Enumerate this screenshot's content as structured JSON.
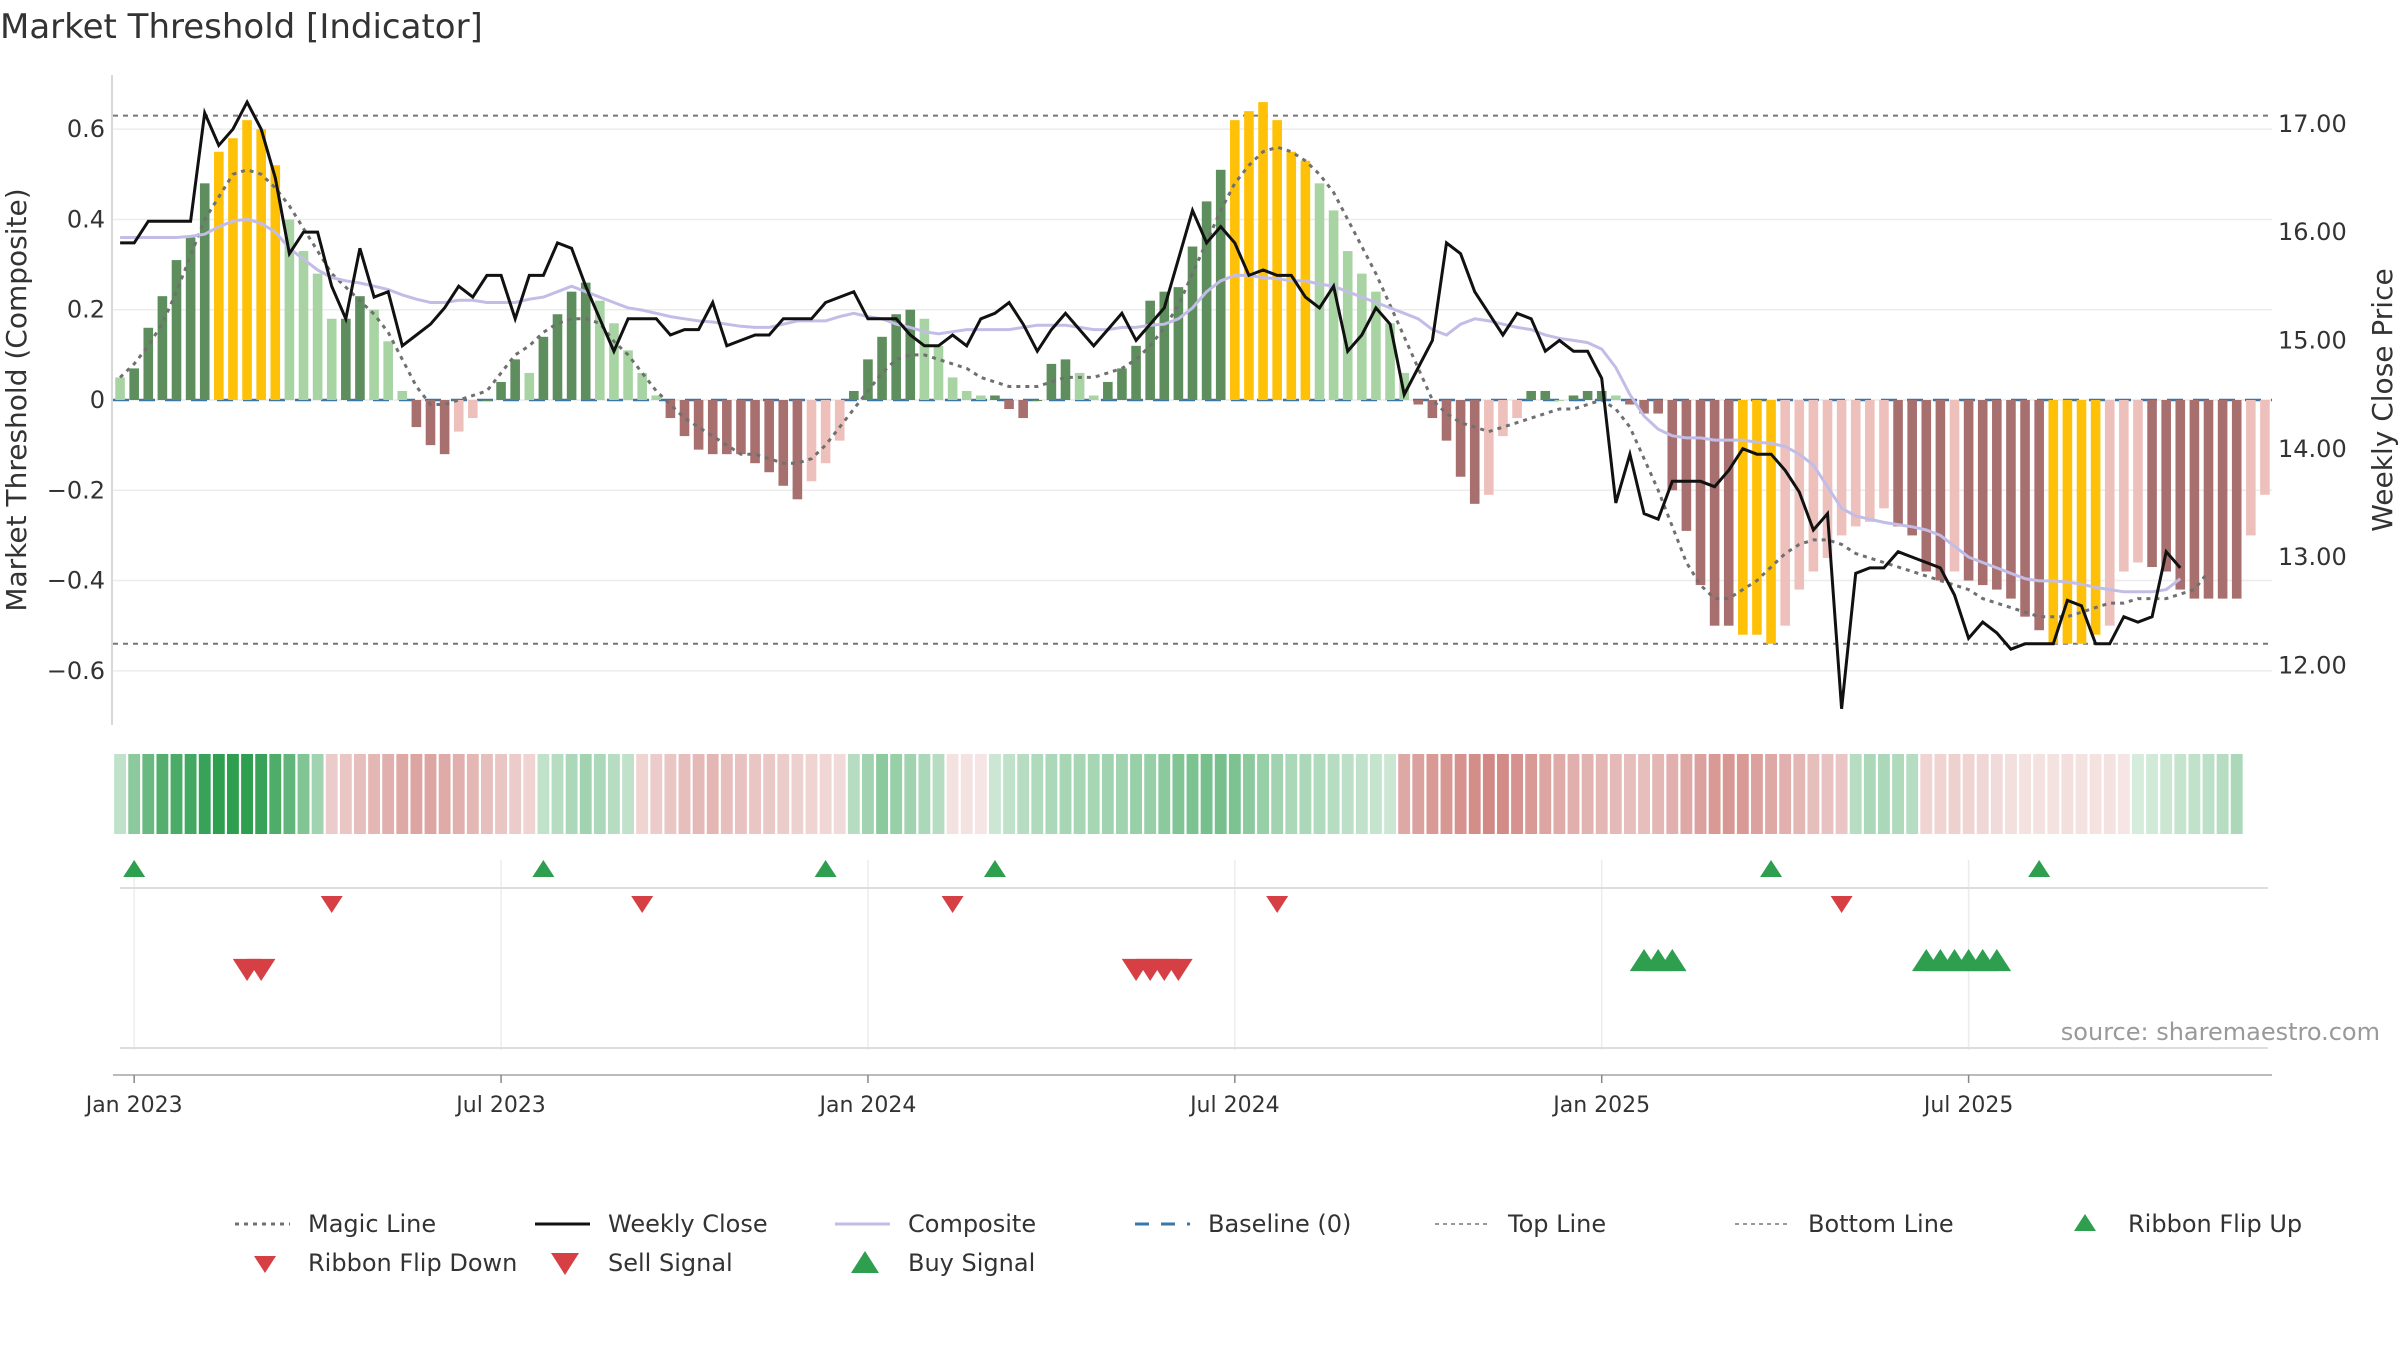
{
  "title": "Market Threshold [Indicator]",
  "source": "source: sharemaestro.com",
  "colors": {
    "dark_green": "#5e8e5e",
    "light_green": "#a8d4a3",
    "dark_red": "#a86f6f",
    "light_red": "#eec0bc",
    "gold": "#ffc107",
    "close_line": "#111111",
    "composite_line": "#c2bde6",
    "magic_line": "#707070",
    "baseline": "#3a77a8",
    "buy": "#2e9e4f",
    "sell": "#d64045"
  },
  "chart_data": {
    "type": "bar",
    "title": "Market Threshold [Indicator]",
    "ylabel": "Market Threshold (Composite)",
    "y2label": "Weekly Close Price",
    "ylim": [
      -0.72,
      0.72
    ],
    "y2lim": [
      11.45,
      17.45
    ],
    "yticks": [
      -0.6,
      -0.4,
      -0.2,
      0,
      0.2,
      0.4,
      0.6
    ],
    "ytick_labels": [
      "−0.6",
      "−0.4",
      "−0.2",
      "0",
      "0.2",
      "0.4",
      "0.6"
    ],
    "y2ticks": [
      12,
      13,
      14,
      15,
      16,
      17
    ],
    "y2tick_labels": [
      "12.00",
      "13.00",
      "14.00",
      "15.00",
      "16.00",
      "17.00"
    ],
    "xtick_labels": [
      "Jan 2023",
      "Jul 2023",
      "Jan 2024",
      "Jul 2024",
      "Jan 2025",
      "Jul 2025"
    ],
    "xticks_week_index": [
      1,
      27,
      53,
      79,
      105,
      131
    ],
    "top_line": 0.63,
    "bottom_line": -0.54,
    "bars": [
      0.05,
      0.07,
      0.16,
      0.23,
      0.31,
      0.36,
      0.48,
      0.55,
      0.58,
      0.62,
      0.6,
      0.52,
      0.4,
      0.33,
      0.28,
      0.18,
      0.18,
      0.23,
      0.2,
      0.13,
      0.02,
      -0.06,
      -0.1,
      -0.12,
      -0.07,
      -0.04,
      0.0,
      0.04,
      0.09,
      0.06,
      0.14,
      0.19,
      0.24,
      0.26,
      0.22,
      0.17,
      0.11,
      0.06,
      0.01,
      -0.04,
      -0.08,
      -0.11,
      -0.12,
      -0.12,
      -0.12,
      -0.14,
      -0.16,
      -0.19,
      -0.22,
      -0.18,
      -0.14,
      -0.09,
      0.02,
      0.09,
      0.14,
      0.19,
      0.2,
      0.18,
      0.12,
      0.05,
      0.02,
      0.01,
      0.01,
      -0.02,
      -0.04,
      0.0,
      0.08,
      0.09,
      0.06,
      0.01,
      0.04,
      0.07,
      0.12,
      0.22,
      0.24,
      0.25,
      0.34,
      0.44,
      0.51,
      0.62,
      0.64,
      0.66,
      0.62,
      0.55,
      0.53,
      0.48,
      0.42,
      0.33,
      0.28,
      0.24,
      0.17,
      0.06,
      -0.01,
      -0.04,
      -0.09,
      -0.17,
      -0.23,
      -0.21,
      -0.08,
      -0.04,
      0.02,
      0.02,
      0.0,
      0.01,
      0.02,
      0.02,
      0.01,
      -0.01,
      -0.03,
      -0.03,
      -0.2,
      -0.29,
      -0.41,
      -0.5,
      -0.5,
      -0.52,
      -0.52,
      -0.54,
      -0.5,
      -0.42,
      -0.38,
      -0.35,
      -0.3,
      -0.28,
      -0.27,
      -0.24,
      -0.28,
      -0.3,
      -0.38,
      -0.4,
      -0.38,
      -0.4,
      -0.41,
      -0.42,
      -0.44,
      -0.48,
      -0.51,
      -0.54,
      -0.54,
      -0.54,
      -0.52,
      -0.5,
      -0.38,
      -0.36,
      -0.37,
      -0.38,
      -0.42,
      -0.44,
      -0.44,
      -0.44,
      -0.44,
      -0.3,
      -0.21
    ],
    "weekly_close": [
      15.9,
      15.9,
      16.1,
      16.1,
      16.1,
      16.1,
      17.1,
      16.8,
      16.95,
      17.2,
      16.95,
      16.5,
      15.8,
      16,
      16,
      15.5,
      15.2,
      15.85,
      15.4,
      15.45,
      14.95,
      15.05,
      15.15,
      15.3,
      15.5,
      15.4,
      15.6,
      15.6,
      15.2,
      15.6,
      15.6,
      15.9,
      15.85,
      15.5,
      15.2,
      14.9,
      15.2,
      15.2,
      15.2,
      15.05,
      15.1,
      15.1,
      15.35,
      14.95,
      15,
      15.05,
      15.05,
      15.2,
      15.2,
      15.2,
      15.35,
      15.4,
      15.45,
      15.2,
      15.2,
      15.2,
      15.05,
      14.95,
      14.95,
      15.05,
      14.95,
      15.2,
      15.25,
      15.35,
      15.15,
      14.9,
      15.1,
      15.25,
      15.1,
      14.95,
      15.1,
      15.25,
      15,
      15.15,
      15.3,
      15.75,
      16.2,
      15.9,
      16.05,
      15.9,
      15.6,
      15.65,
      15.6,
      15.6,
      15.4,
      15.3,
      15.5,
      14.9,
      15.05,
      15.3,
      15.15,
      14.5,
      14.75,
      15,
      15.9,
      15.8,
      15.45,
      15.25,
      15.05,
      15.25,
      15.2,
      14.9,
      15,
      14.9,
      14.9,
      14.65,
      13.5,
      13.95,
      13.4,
      13.35,
      13.7,
      13.7,
      13.7,
      13.65,
      13.8,
      14,
      13.95,
      13.95,
      13.8,
      13.6,
      13.25,
      13.4,
      11.6,
      12.85,
      12.9,
      12.9,
      13.05,
      13,
      12.95,
      12.9,
      12.65,
      12.25,
      12.4,
      12.3,
      12.15,
      12.2,
      12.2,
      12.2,
      12.6,
      12.55,
      12.2,
      12.2,
      12.45,
      12.4,
      12.45,
      13.05,
      12.9
    ],
    "composite": [
      15.95,
      15.95,
      15.95,
      15.95,
      15.95,
      15.96,
      15.98,
      16.05,
      16.1,
      16.12,
      16.08,
      16,
      15.85,
      15.75,
      15.65,
      15.58,
      15.55,
      15.53,
      15.5,
      15.47,
      15.42,
      15.38,
      15.35,
      15.35,
      15.37,
      15.37,
      15.35,
      15.35,
      15.35,
      15.38,
      15.4,
      15.45,
      15.5,
      15.45,
      15.4,
      15.35,
      15.3,
      15.28,
      15.25,
      15.22,
      15.2,
      15.18,
      15.17,
      15.15,
      15.13,
      15.12,
      15.12,
      15.15,
      15.18,
      15.18,
      15.18,
      15.22,
      15.25,
      15.22,
      15.2,
      15.15,
      15.12,
      15.08,
      15.06,
      15.08,
      15.1,
      15.1,
      15.1,
      15.1,
      15.12,
      15.14,
      15.14,
      15.14,
      15.12,
      15.1,
      15.1,
      15.12,
      15.12,
      15.14,
      15.15,
      15.2,
      15.3,
      15.45,
      15.55,
      15.6,
      15.6,
      15.58,
      15.57,
      15.55,
      15.55,
      15.52,
      15.5,
      15.45,
      15.4,
      15.35,
      15.3,
      15.25,
      15.2,
      15.1,
      15.05,
      15.15,
      15.2,
      15.18,
      15.15,
      15.12,
      15.1,
      15.05,
      15.02,
      15,
      14.98,
      14.92,
      14.75,
      14.5,
      14.3,
      14.18,
      14.12,
      14.1,
      14.1,
      14.08,
      14.08,
      14.08,
      14.06,
      14.05,
      14.02,
      13.95,
      13.85,
      13.65,
      13.45,
      13.38,
      13.35,
      13.32,
      13.3,
      13.28,
      13.25,
      13.2,
      13.1,
      13,
      12.95,
      12.9,
      12.85,
      12.8,
      12.78,
      12.78,
      12.77,
      12.75,
      12.72,
      12.7,
      12.68,
      12.68,
      12.68,
      12.7,
      12.8
    ],
    "magic_line": [
      0.05,
      0.08,
      0.12,
      0.17,
      0.24,
      0.32,
      0.4,
      0.45,
      0.5,
      0.51,
      0.5,
      0.47,
      0.43,
      0.38,
      0.33,
      0.28,
      0.25,
      0.22,
      0.19,
      0.15,
      0.09,
      0.03,
      -0.01,
      -0.01,
      0.0,
      0.01,
      0.02,
      0.06,
      0.1,
      0.12,
      0.15,
      0.17,
      0.18,
      0.18,
      0.17,
      0.13,
      0.1,
      0.06,
      0.02,
      -0.01,
      -0.04,
      -0.06,
      -0.08,
      -0.1,
      -0.12,
      -0.12,
      -0.13,
      -0.14,
      -0.14,
      -0.13,
      -0.1,
      -0.06,
      -0.02,
      0.02,
      0.06,
      0.09,
      0.1,
      0.1,
      0.09,
      0.08,
      0.07,
      0.05,
      0.04,
      0.03,
      0.03,
      0.03,
      0.04,
      0.05,
      0.05,
      0.05,
      0.06,
      0.07,
      0.09,
      0.12,
      0.16,
      0.21,
      0.28,
      0.35,
      0.42,
      0.48,
      0.52,
      0.55,
      0.56,
      0.55,
      0.53,
      0.5,
      0.46,
      0.4,
      0.34,
      0.28,
      0.21,
      0.14,
      0.07,
      0.0,
      -0.03,
      -0.05,
      -0.06,
      -0.07,
      -0.06,
      -0.05,
      -0.04,
      -0.03,
      -0.02,
      -0.02,
      -0.01,
      0.0,
      -0.02,
      -0.06,
      -0.13,
      -0.2,
      -0.28,
      -0.36,
      -0.41,
      -0.44,
      -0.44,
      -0.42,
      -0.4,
      -0.37,
      -0.34,
      -0.32,
      -0.31,
      -0.31,
      -0.32,
      -0.34,
      -0.35,
      -0.36,
      -0.37,
      -0.38,
      -0.39,
      -0.4,
      -0.41,
      -0.42,
      -0.44,
      -0.45,
      -0.46,
      -0.47,
      -0.48,
      -0.48,
      -0.48,
      -0.47,
      -0.46,
      -0.45,
      -0.45,
      -0.44,
      -0.44,
      -0.44,
      -0.43,
      -0.42,
      -0.38
    ],
    "ribbon_shades": [
      0.3,
      0.55,
      0.72,
      0.82,
      0.86,
      0.9,
      0.95,
      1.0,
      1.0,
      1.0,
      0.95,
      0.85,
      0.75,
      0.6,
      0.45,
      -0.35,
      -0.4,
      -0.45,
      -0.5,
      -0.55,
      -0.6,
      -0.62,
      -0.62,
      -0.58,
      -0.55,
      -0.5,
      -0.45,
      -0.4,
      -0.35,
      -0.3,
      0.3,
      0.35,
      0.4,
      0.45,
      0.4,
      0.35,
      0.3,
      -0.3,
      -0.35,
      -0.4,
      -0.45,
      -0.48,
      -0.5,
      -0.45,
      -0.42,
      -0.4,
      -0.38,
      -0.35,
      -0.32,
      -0.3,
      -0.28,
      -0.25,
      0.35,
      0.45,
      0.55,
      0.5,
      0.45,
      0.4,
      0.35,
      -0.2,
      -0.2,
      -0.18,
      0.25,
      0.3,
      0.35,
      0.38,
      0.4,
      0.42,
      0.42,
      0.42,
      0.45,
      0.45,
      0.5,
      0.5,
      0.55,
      0.6,
      0.62,
      0.65,
      0.65,
      0.62,
      0.55,
      0.5,
      0.45,
      0.4,
      0.4,
      0.38,
      0.35,
      0.32,
      0.3,
      0.28,
      0.25,
      -0.6,
      -0.65,
      -0.7,
      -0.72,
      -0.75,
      -0.78,
      -0.82,
      -0.8,
      -0.75,
      -0.7,
      -0.62,
      -0.58,
      -0.55,
      -0.52,
      -0.5,
      -0.48,
      -0.45,
      -0.45,
      -0.5,
      -0.55,
      -0.6,
      -0.65,
      -0.7,
      -0.72,
      -0.7,
      -0.65,
      -0.6,
      -0.55,
      -0.5,
      -0.45,
      -0.42,
      -0.4,
      0.35,
      0.4,
      0.4,
      0.38,
      0.35,
      -0.3,
      -0.3,
      -0.32,
      -0.3,
      -0.28,
      -0.25,
      -0.22,
      -0.2,
      -0.2,
      -0.2,
      -0.22,
      -0.2,
      -0.2,
      -0.2,
      -0.18,
      0.2,
      0.22,
      0.25,
      0.28,
      0.3,
      0.32,
      0.35,
      0.4
    ],
    "ribbon_flip_up": [
      1,
      30,
      50,
      62,
      117,
      136
    ],
    "ribbon_flip_down": [
      15,
      37,
      59,
      82,
      122
    ],
    "sell_signals": [
      9,
      10,
      72,
      73,
      74,
      75
    ],
    "buy_signals": [
      108,
      109,
      110,
      128,
      129,
      130,
      131,
      132,
      133
    ],
    "legend": [
      {
        "label": "Magic Line",
        "kind": "dotted"
      },
      {
        "label": "Weekly Close",
        "kind": "solid-dark"
      },
      {
        "label": "Composite",
        "kind": "solid-lavender"
      },
      {
        "label": "Baseline (0)",
        "kind": "dashed-blue"
      },
      {
        "label": "Top Line",
        "kind": "dotted-light"
      },
      {
        "label": "Bottom Line",
        "kind": "dotted-light"
      },
      {
        "label": "Ribbon Flip Up",
        "kind": "triangle-up-green"
      },
      {
        "label": "Ribbon Flip Down",
        "kind": "triangle-down-red"
      },
      {
        "label": "Sell Signal",
        "kind": "triangle-down-red-large"
      },
      {
        "label": "Buy Signal",
        "kind": "triangle-up-green-large"
      }
    ]
  }
}
